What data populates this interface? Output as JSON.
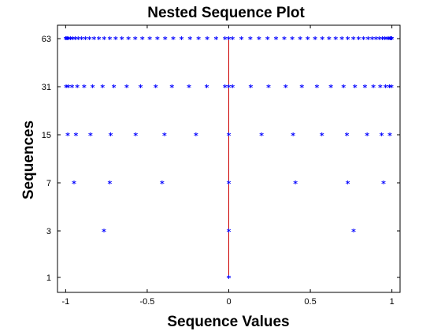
{
  "chart_data": {
    "type": "scatter",
    "title": "Nested Sequence Plot",
    "xlabel": "Sequence Values",
    "ylabel": "Sequences",
    "xlim": [
      -1.05,
      1.05
    ],
    "y_levels": [
      1,
      3,
      7,
      15,
      31,
      63
    ],
    "x_ticks": [
      -1,
      -0.5,
      0,
      0.5,
      1
    ],
    "x_tick_labels": [
      "-1",
      "-0.5",
      "0",
      "0.5",
      "1"
    ],
    "y_tick_labels": [
      "1",
      "3",
      "7",
      "15",
      "31",
      "63"
    ],
    "marker": "*",
    "marker_color": "#0000ff",
    "reference_line": {
      "x": 0,
      "from_y": 1,
      "to_y": 63,
      "color": "#cc0000"
    },
    "grid": false,
    "series": [
      {
        "y": 1,
        "x": [
          0
        ]
      },
      {
        "y": 3,
        "x": [
          -0.7654,
          0,
          0.7654
        ]
      },
      {
        "y": 7,
        "x": [
          -0.9484,
          -0.7297,
          -0.4085,
          0,
          0.4085,
          0.7297,
          0.9484
        ]
      },
      {
        "y": 15,
        "x": [
          -0.9873,
          -0.9373,
          -0.848,
          -0.7241,
          -0.5708,
          -0.3941,
          -0.2011,
          0,
          0.2011,
          0.3941,
          0.5708,
          0.7241,
          0.848,
          0.9373,
          0.9873
        ]
      },
      {
        "y": 31,
        "x": [
          -0.9968,
          -0.9841,
          -0.9614,
          -0.9287,
          -0.8864,
          -0.8345,
          -0.7736,
          -0.7039,
          -0.626,
          -0.5404,
          -0.4478,
          -0.3486,
          -0.2439,
          -0.1349,
          -0.0229,
          0,
          0.0229,
          0.1349,
          0.2439,
          0.3486,
          0.4478,
          0.5404,
          0.626,
          0.7039,
          0.7736,
          0.8345,
          0.8864,
          0.9287,
          0.9614,
          0.9841,
          0.9968
        ]
      },
      {
        "y": 63,
        "x": [
          -0.9992,
          -0.996,
          -0.9902,
          -0.9818,
          -0.9709,
          -0.9574,
          -0.9415,
          -0.9231,
          -0.9023,
          -0.8791,
          -0.8537,
          -0.8259,
          -0.7959,
          -0.7638,
          -0.7295,
          -0.6933,
          -0.6551,
          -0.615,
          -0.5731,
          -0.5295,
          -0.4843,
          -0.4376,
          -0.3895,
          -0.3401,
          -0.2895,
          -0.2379,
          -0.1853,
          -0.1319,
          -0.0778,
          -0.0231,
          0,
          0.0231,
          0.0778,
          0.1319,
          0.1853,
          0.2379,
          0.2895,
          0.3401,
          0.3895,
          0.4376,
          0.4843,
          0.5295,
          0.5731,
          0.615,
          0.6551,
          0.6933,
          0.7295,
          0.7638,
          0.7959,
          0.8259,
          0.8537,
          0.8791,
          0.9023,
          0.9231,
          0.9415,
          0.9574,
          0.9709,
          0.9818,
          0.9902,
          0.996,
          0.9992
        ]
      }
    ]
  }
}
